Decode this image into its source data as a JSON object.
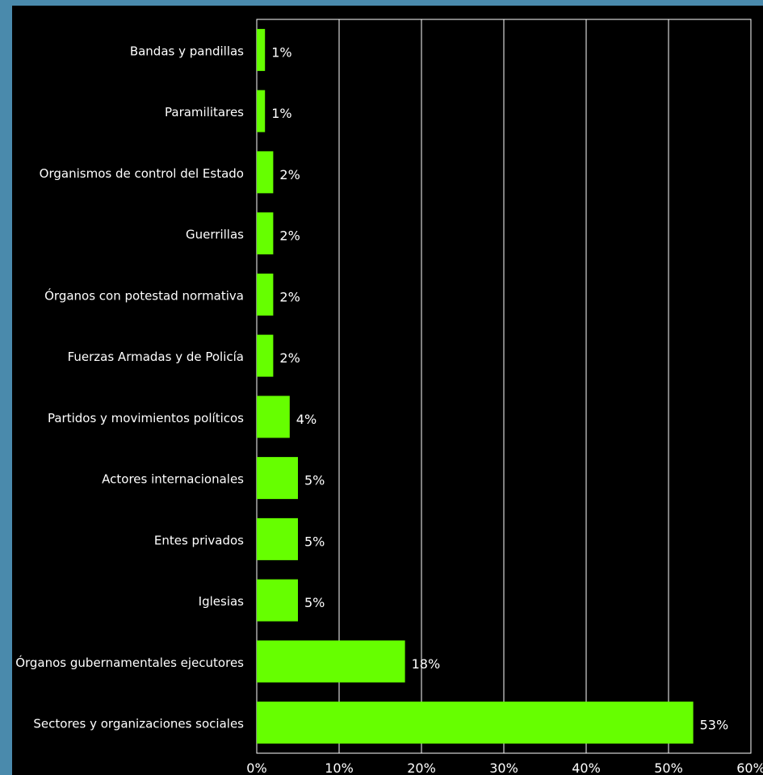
{
  "chart_data": {
    "type": "bar",
    "orientation": "horizontal",
    "categories": [
      "Bandas y pandillas",
      "Paramilitares",
      "Organismos de control del Estado",
      "Guerrillas",
      "Órganos con potestad normativa",
      "Fuerzas Armadas y de Policía",
      "Partidos y movimientos políticos",
      "Actores internacionales",
      "Entes privados",
      "Iglesias",
      "Órganos gubernamentales ejecutores",
      "Sectores y organizaciones sociales"
    ],
    "values": [
      1,
      1,
      2,
      2,
      2,
      2,
      4,
      5,
      5,
      5,
      18,
      53
    ],
    "value_labels": [
      "1%",
      "1%",
      "2%",
      "2%",
      "2%",
      "2%",
      "4%",
      "5%",
      "5%",
      "5%",
      "18%",
      "53%"
    ],
    "title": "",
    "xlabel": "",
    "ylabel": "",
    "xlim": [
      0,
      60
    ],
    "x_ticks": [
      "0%",
      "10%",
      "20%",
      "30%",
      "40%",
      "50%",
      "60%"
    ],
    "grid": "vertical",
    "legend": "none"
  },
  "colors": {
    "page_background": "#4a8aac",
    "plot_background": "#000000",
    "bar": "#66ff00",
    "text": "#ffffff",
    "grid": "#ffffff"
  }
}
